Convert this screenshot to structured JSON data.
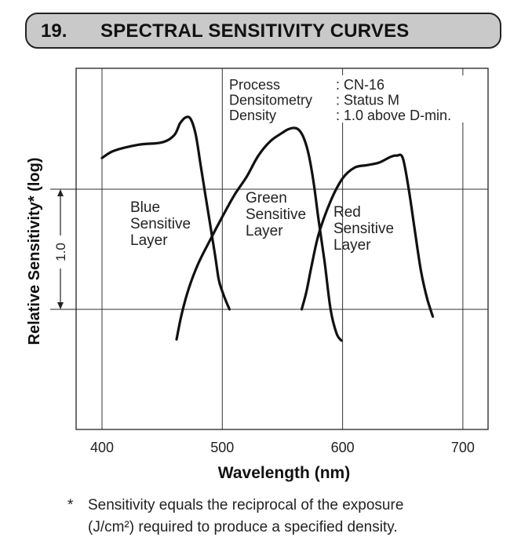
{
  "header": {
    "number": "19.",
    "title": "SPECTRAL SENSITIVITY CURVES"
  },
  "chart_data": {
    "type": "line",
    "xlabel": "Wavelength (nm)",
    "ylabel": "Relative Sensitivity* (log)",
    "xlim": [
      380,
      720
    ],
    "x_ticks": [
      "400",
      "500",
      "600",
      "700"
    ],
    "scale_marker": "1.0",
    "info": [
      {
        "key": "Process",
        "value": ": CN-16"
      },
      {
        "key": "Densitometry",
        "value": ": Status M"
      },
      {
        "key": "Density",
        "value": ": 1.0 above D-min."
      }
    ],
    "series": [
      {
        "name": "Blue Sensitive Layer",
        "label_lines": [
          "Blue",
          "Sensitive",
          "Layer"
        ],
        "x": [
          400,
          410,
          430,
          450,
          460,
          465,
          470,
          474,
          478,
          482,
          486,
          490,
          494,
          497,
          500,
          503,
          506
        ],
        "y": [
          1.26,
          1.32,
          1.37,
          1.39,
          1.45,
          1.55,
          1.6,
          1.58,
          1.45,
          1.2,
          0.95,
          0.7,
          0.45,
          0.25,
          0.15,
          0.07,
          0.0
        ]
      },
      {
        "name": "Green Sensitive Layer",
        "label_lines": [
          "Green",
          "Sensitive",
          "Layer"
        ],
        "x": [
          462,
          466,
          472,
          480,
          490,
          500,
          510,
          520,
          530,
          540,
          550,
          555,
          560,
          564,
          568,
          572,
          576,
          580,
          585,
          590,
          595,
          599
        ],
        "y": [
          -0.25,
          -0.05,
          0.17,
          0.38,
          0.58,
          0.77,
          0.95,
          1.1,
          1.28,
          1.4,
          1.47,
          1.5,
          1.51,
          1.49,
          1.42,
          1.28,
          1.05,
          0.75,
          0.4,
          0.0,
          -0.2,
          -0.26
        ]
      },
      {
        "name": "Red Sensitive Layer",
        "label_lines": [
          "Red",
          "Sensitive",
          "Layer"
        ],
        "x": [
          566,
          570,
          574,
          580,
          590,
          600,
          610,
          620,
          630,
          640,
          645,
          650,
          655,
          660,
          665,
          670,
          675
        ],
        "y": [
          0.0,
          0.15,
          0.35,
          0.62,
          0.9,
          1.09,
          1.18,
          1.2,
          1.22,
          1.27,
          1.28,
          1.26,
          1.0,
          0.66,
          0.33,
          0.1,
          -0.06
        ]
      }
    ]
  },
  "footnote": {
    "marker": "*",
    "line1": "Sensitivity equals the reciprocal of the exposure",
    "line2": "(J/cm²) required to produce a specified density."
  }
}
